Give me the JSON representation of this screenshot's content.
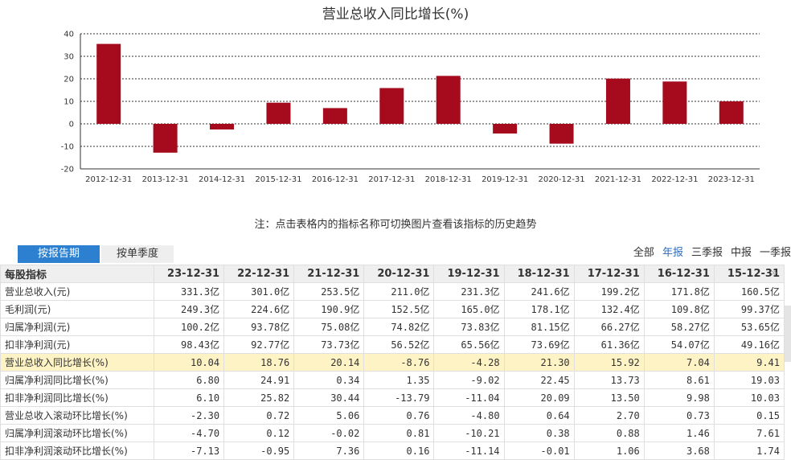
{
  "chart_data": {
    "type": "bar",
    "title": "营业总收入同比增长(%)",
    "categories": [
      "2012-12-31",
      "2013-12-31",
      "2014-12-31",
      "2015-12-31",
      "2016-12-31",
      "2017-12-31",
      "2018-12-31",
      "2019-12-31",
      "2020-12-31",
      "2021-12-31",
      "2022-12-31",
      "2023-12-31"
    ],
    "values": [
      35.5,
      -12.8,
      -2.5,
      9.4,
      7.0,
      15.9,
      21.3,
      -4.3,
      -8.8,
      20.1,
      18.8,
      10.0
    ],
    "ylim": [
      -20,
      40
    ],
    "yticks": [
      40,
      30,
      20,
      10,
      0,
      -10,
      -20
    ],
    "grid": true,
    "bar_color": "#a50b1c"
  },
  "note": "注：点击表格内的指标名称可切换图片查看该指标的历史趋势",
  "tabs": [
    {
      "label": "按报告期",
      "active": true
    },
    {
      "label": "按单季度",
      "active": false
    }
  ],
  "periods": [
    {
      "label": "全部",
      "active": false
    },
    {
      "label": "年报",
      "active": true
    },
    {
      "label": "三季报",
      "active": false
    },
    {
      "label": "中报",
      "active": false
    },
    {
      "label": "一季报",
      "active": false
    }
  ],
  "table": {
    "header_label": "每股指标",
    "columns": [
      "23-12-31",
      "22-12-31",
      "21-12-31",
      "20-12-31",
      "19-12-31",
      "18-12-31",
      "17-12-31",
      "16-12-31",
      "15-12-31"
    ],
    "rows": [
      {
        "label": "营业总收入(元)",
        "values": [
          "331.3亿",
          "301.0亿",
          "253.5亿",
          "211.0亿",
          "231.3亿",
          "241.6亿",
          "199.2亿",
          "171.8亿",
          "160.5亿"
        ]
      },
      {
        "label": "毛利润(元)",
        "values": [
          "249.3亿",
          "224.6亿",
          "190.9亿",
          "152.5亿",
          "165.0亿",
          "178.1亿",
          "132.4亿",
          "109.8亿",
          "99.37亿"
        ]
      },
      {
        "label": "归属净利润(元)",
        "values": [
          "100.2亿",
          "93.78亿",
          "75.08亿",
          "74.82亿",
          "73.83亿",
          "81.15亿",
          "66.27亿",
          "58.27亿",
          "53.65亿"
        ]
      },
      {
        "label": "扣非净利润(元)",
        "values": [
          "98.43亿",
          "92.77亿",
          "73.73亿",
          "56.52亿",
          "65.56亿",
          "73.69亿",
          "61.36亿",
          "54.07亿",
          "49.16亿"
        ]
      },
      {
        "label": "营业总收入同比增长(%)",
        "values": [
          "10.04",
          "18.76",
          "20.14",
          "-8.76",
          "-4.28",
          "21.30",
          "15.92",
          "7.04",
          "9.41"
        ],
        "highlight": true
      },
      {
        "label": "归属净利润同比增长(%)",
        "values": [
          "6.80",
          "24.91",
          "0.34",
          "1.35",
          "-9.02",
          "22.45",
          "13.73",
          "8.61",
          "19.03"
        ]
      },
      {
        "label": "扣非净利润同比增长(%)",
        "values": [
          "6.10",
          "25.82",
          "30.44",
          "-13.79",
          "-11.04",
          "20.09",
          "13.50",
          "9.98",
          "10.03"
        ]
      },
      {
        "label": "营业总收入滚动环比增长(%)",
        "values": [
          "-2.30",
          "0.72",
          "5.06",
          "0.76",
          "-4.80",
          "0.64",
          "2.70",
          "0.73",
          "0.15"
        ]
      },
      {
        "label": "归属净利润滚动环比增长(%)",
        "values": [
          "-4.70",
          "0.12",
          "-0.02",
          "0.81",
          "-10.21",
          "0.38",
          "0.88",
          "1.46",
          "7.61"
        ]
      },
      {
        "label": "扣非净利润滚动环比增长(%)",
        "values": [
          "-7.13",
          "-0.95",
          "7.36",
          "0.16",
          "-11.14",
          "-0.01",
          "1.06",
          "3.68",
          "1.74"
        ]
      }
    ]
  }
}
